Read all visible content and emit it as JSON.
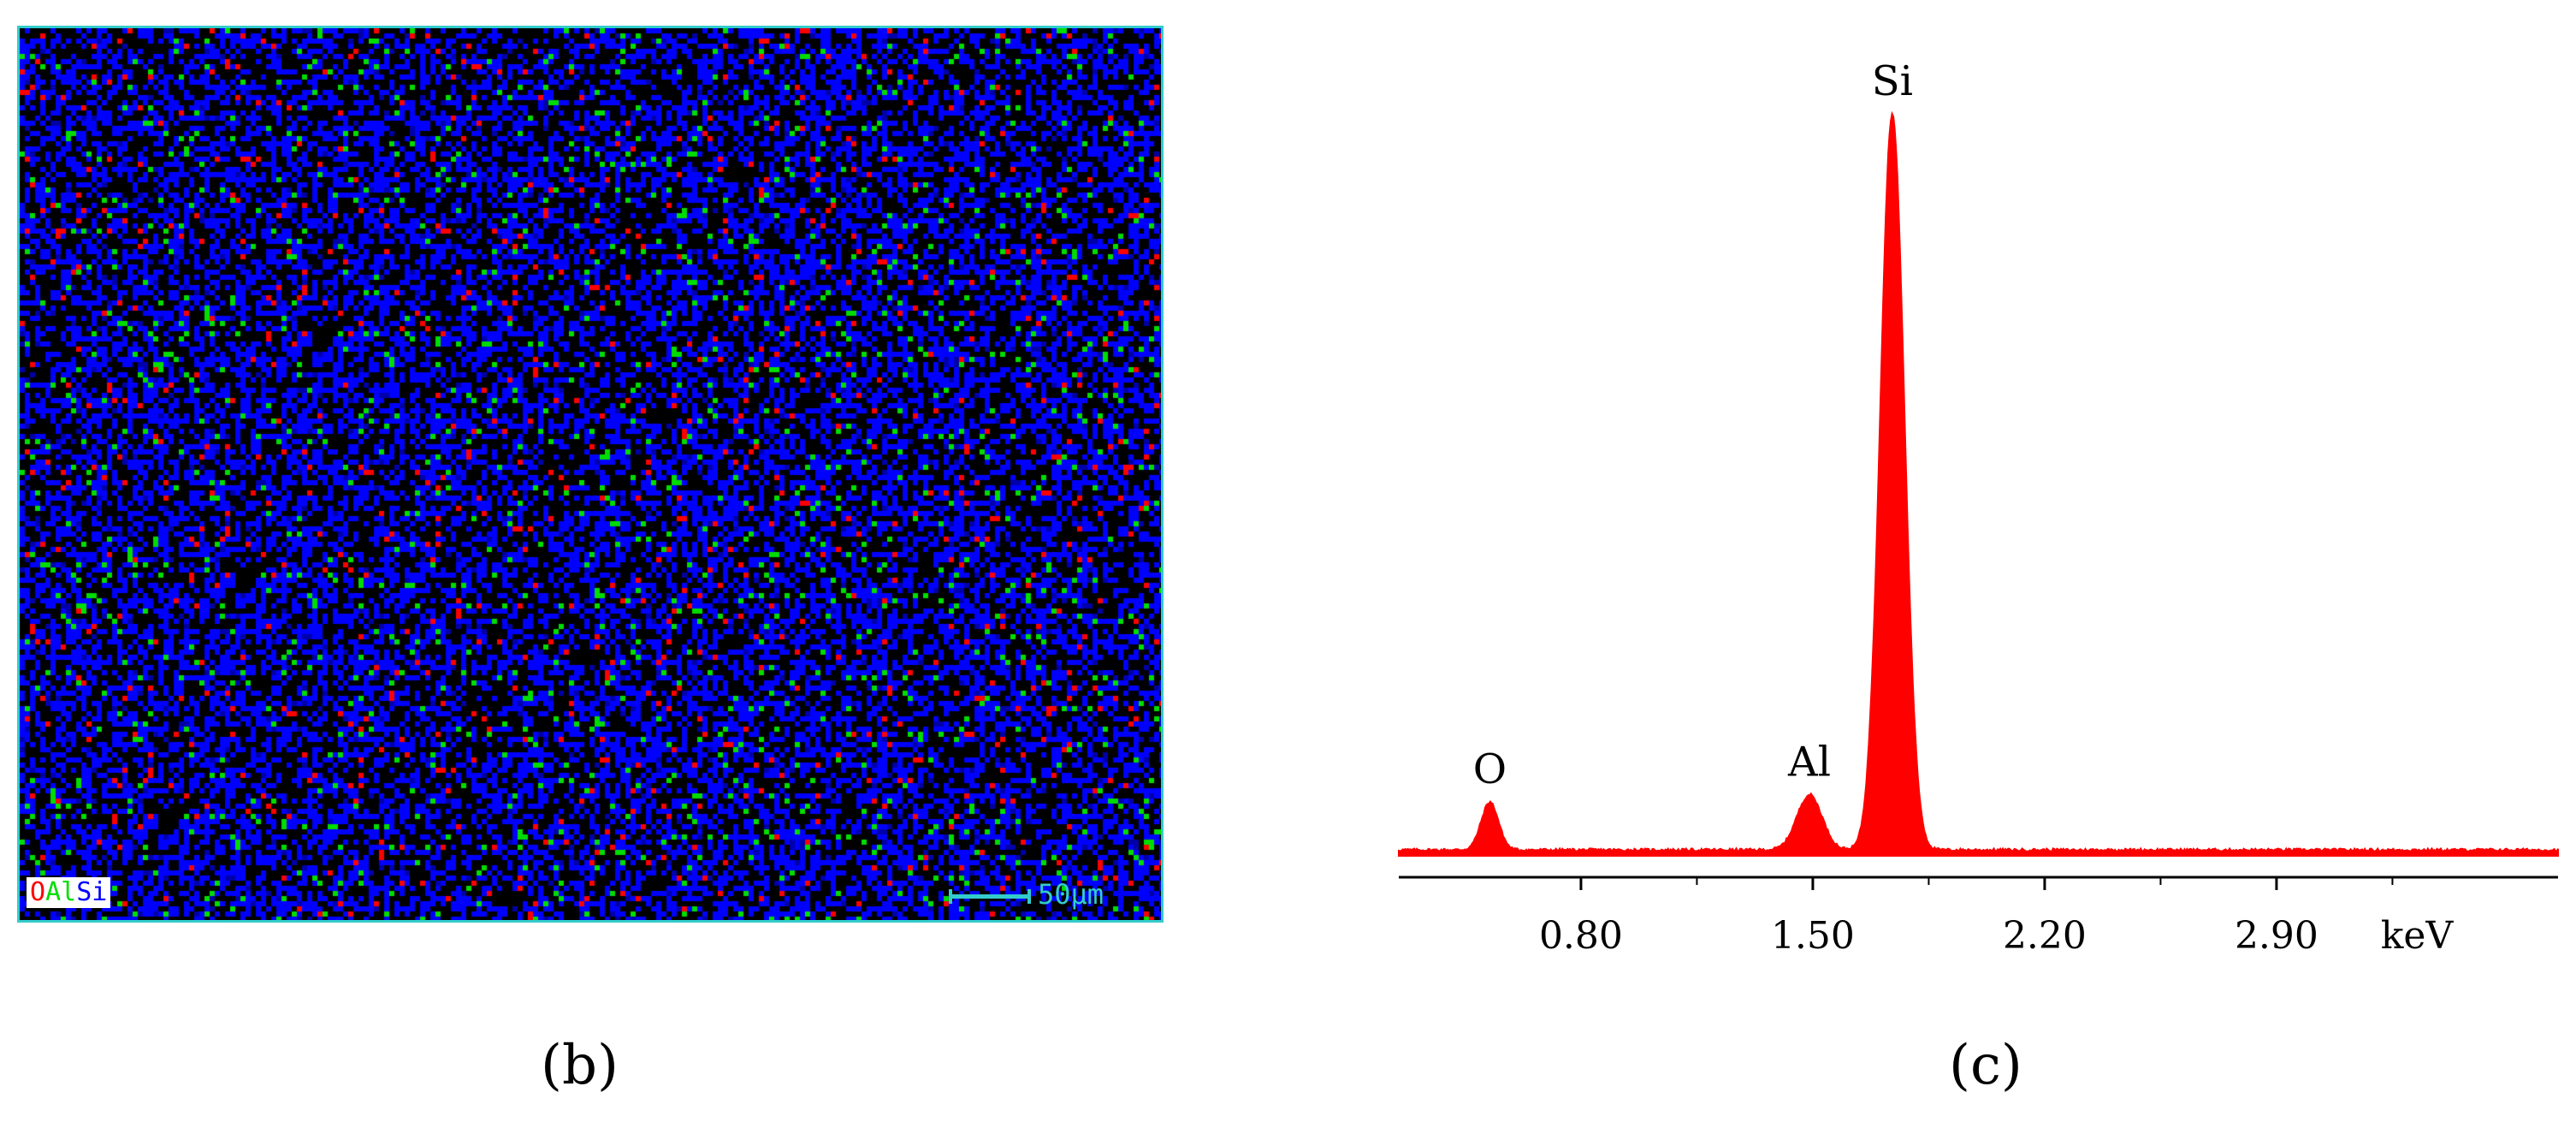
{
  "panels": {
    "b": {
      "label": "(b)"
    },
    "c": {
      "label": "(c)"
    }
  },
  "map": {
    "legend": [
      {
        "element": "O",
        "color": "#ff0000"
      },
      {
        "element": "Al",
        "color": "#00dd00"
      },
      {
        "element": "Si",
        "color": "#0000ff"
      }
    ],
    "scale_bar_label": "50μm",
    "scale_bar_color": "#33cccc",
    "frame_color": "#33cccc",
    "background_color": "#000000"
  },
  "chart_data": {
    "type": "area",
    "title": "",
    "xlabel": "keV",
    "ylabel": "",
    "x_ticks": [
      0.8,
      1.5,
      2.2,
      2.9
    ],
    "x_tick_labels": [
      "0.80",
      "1.50",
      "2.20",
      "2.90"
    ],
    "xlim": [
      0.25,
      3.75
    ],
    "ylim": [
      0,
      100
    ],
    "series_color": "#ff0000",
    "peaks": [
      {
        "label": "O",
        "x": 0.525,
        "height": 6.5,
        "width": 0.026
      },
      {
        "label": "Al",
        "x": 1.49,
        "height": 7.5,
        "width": 0.038
      },
      {
        "label": "Si",
        "x": 1.74,
        "height": 100,
        "width": 0.036
      }
    ],
    "baseline": 0.8,
    "grid": false,
    "legend": "none"
  }
}
